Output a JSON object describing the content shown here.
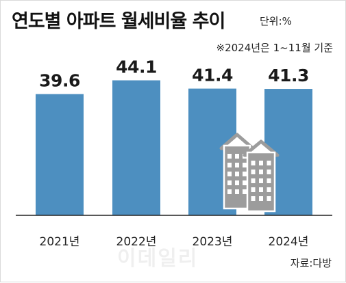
{
  "header": {
    "title": "연도별 아파트 월세비율 추이",
    "unit": "단위:%",
    "note": "※2024년은 1~11월 기준"
  },
  "footer": {
    "source": "자료:다방"
  },
  "watermark": "이데일리",
  "colors": {
    "bar": "#4d8fc0",
    "axis": "#222222",
    "icon": "#9c9c9c"
  },
  "chart_data": {
    "type": "bar",
    "title": "연도별 아파트 월세비율 추이",
    "categories": [
      "2021년",
      "2022년",
      "2023년",
      "2024년"
    ],
    "values": [
      39.6,
      44.1,
      41.4,
      41.3
    ],
    "value_labels": [
      "39.6",
      "44.1",
      "41.4",
      "41.3"
    ],
    "xlabel": "",
    "ylabel": "",
    "ylim": [
      0,
      46
    ],
    "grid": false,
    "legend": "none"
  }
}
